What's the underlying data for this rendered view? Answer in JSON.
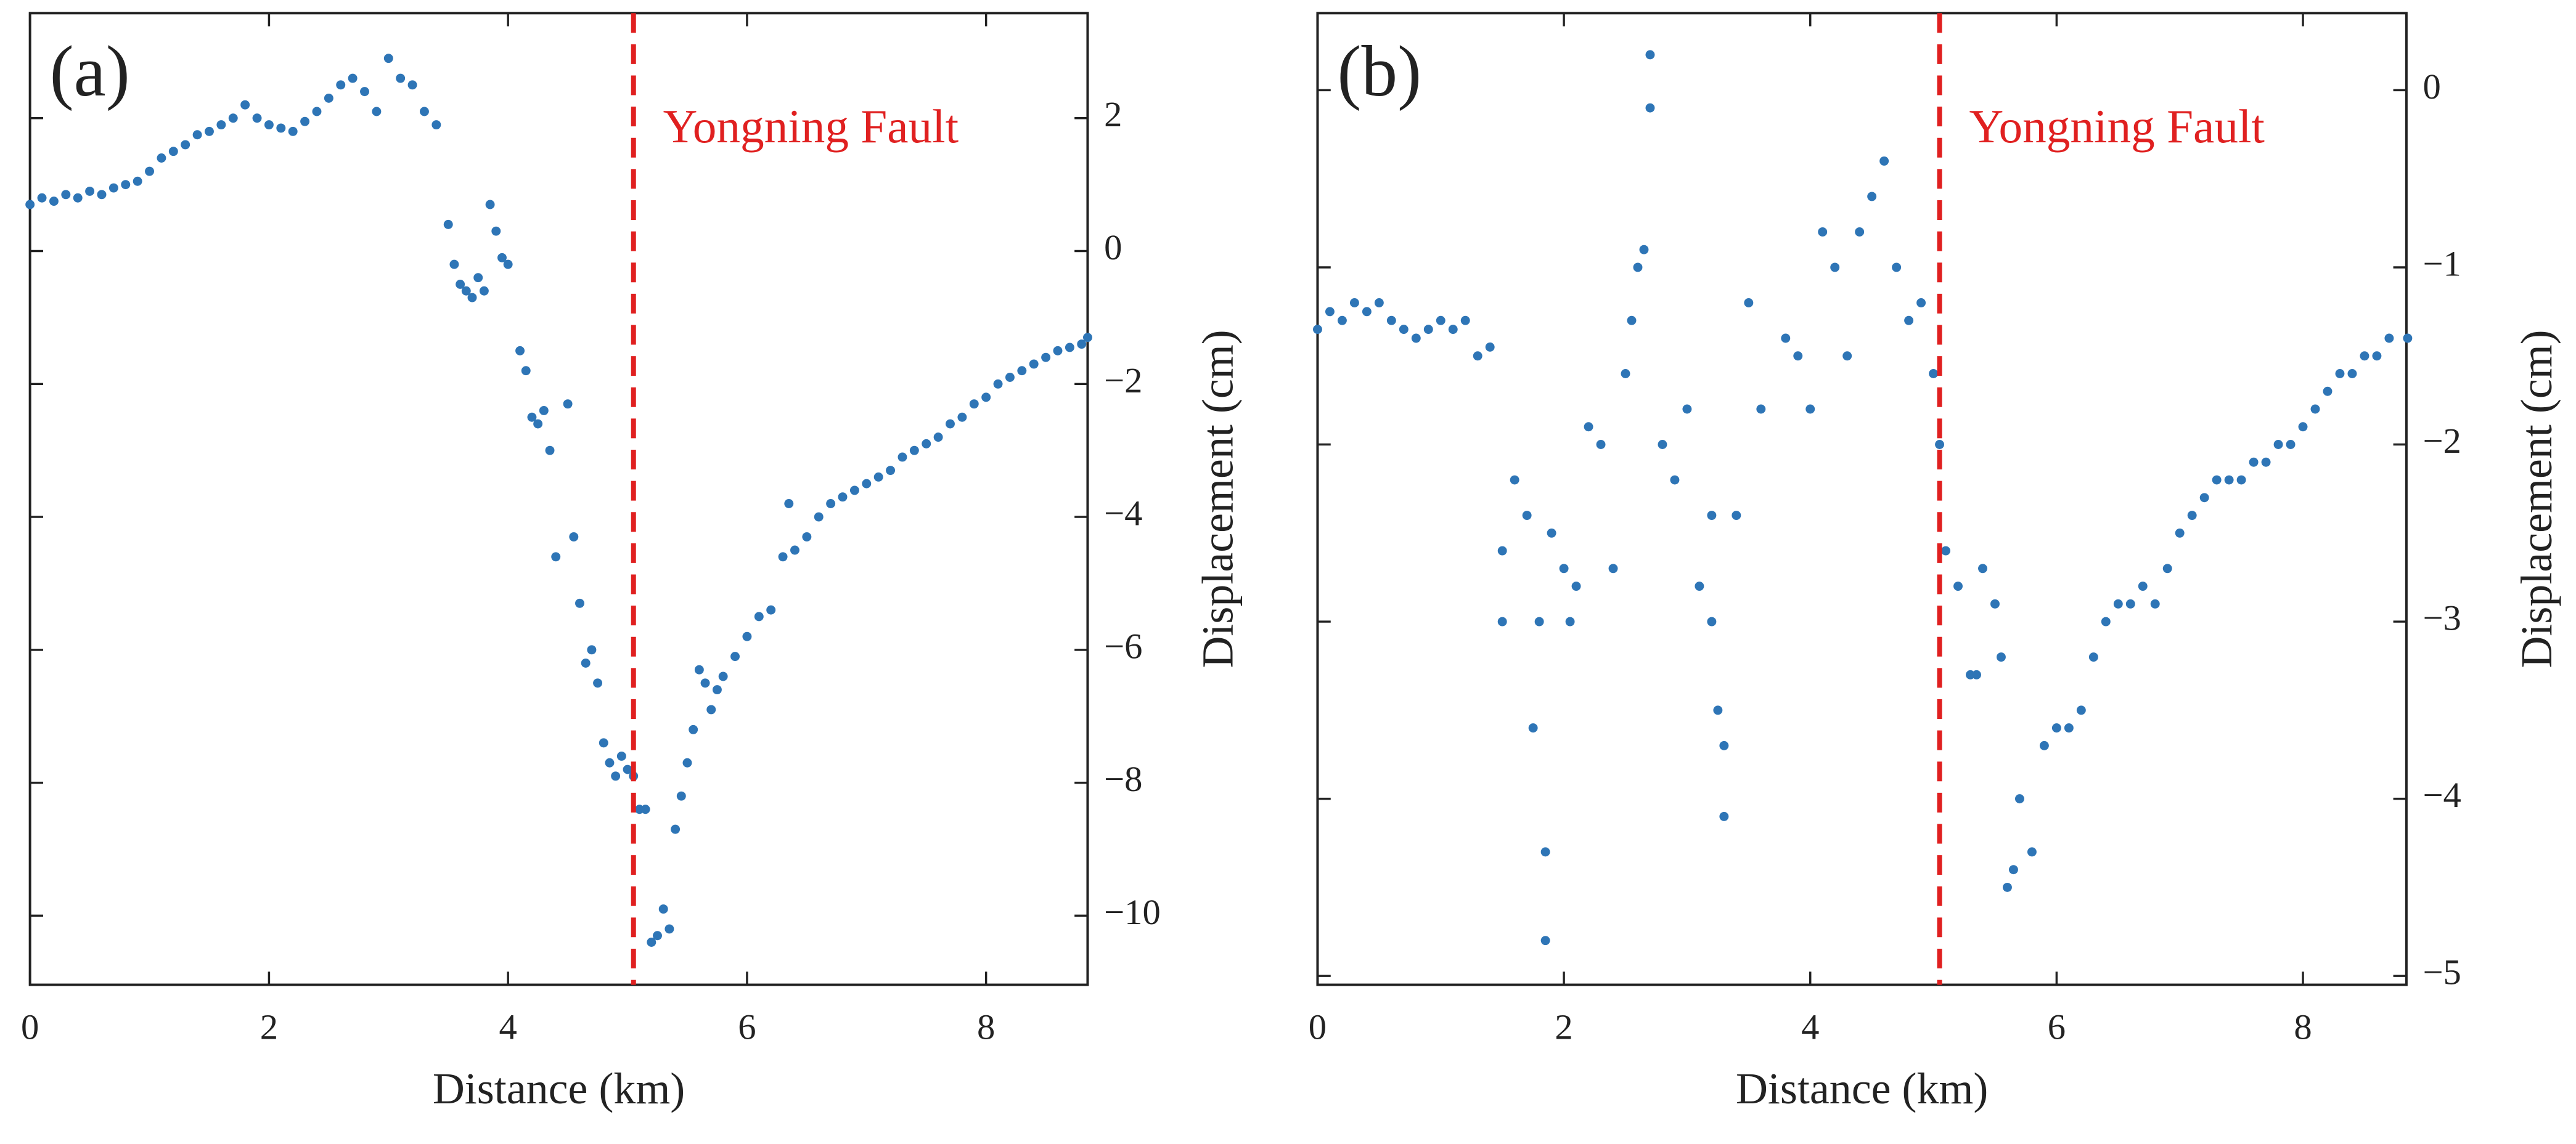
{
  "chart_data": [
    {
      "type": "scatter",
      "label": "(a)",
      "xlabel": "Distance (km)",
      "ylabel": "Displacement (cm)",
      "yaxis_position": "right",
      "color": "#2e75b6",
      "xlim": [
        0,
        8.85
      ],
      "ylim": [
        -11.04,
        3.58
      ],
      "xticks": [
        0,
        2,
        4,
        6,
        8
      ],
      "yticks": [
        {
          "value": -10,
          "label": "−10"
        },
        {
          "value": -8,
          "label": "−8"
        },
        {
          "value": -6,
          "label": "−6"
        },
        {
          "value": -4,
          "label": "−4"
        },
        {
          "value": -2,
          "label": "−2"
        },
        0,
        2
      ],
      "annotation": {
        "text": "Yongning Fault",
        "x": 5.05,
        "color": "#e02020"
      },
      "x": [
        0,
        0.1,
        0.2,
        0.3,
        0.4,
        0.5,
        0.6,
        0.7,
        0.8,
        0.9,
        1.0,
        1.1,
        1.2,
        1.3,
        1.4,
        1.5,
        1.6,
        1.7,
        1.8,
        1.9,
        2.0,
        2.1,
        2.2,
        2.3,
        2.4,
        2.5,
        2.6,
        2.7,
        2.8,
        2.9,
        3.0,
        3.1,
        3.2,
        3.3,
        3.4,
        3.5,
        3.55,
        3.6,
        3.65,
        3.7,
        3.75,
        3.8,
        3.85,
        3.9,
        3.95,
        4.0,
        4.1,
        4.15,
        4.2,
        4.25,
        4.3,
        4.35,
        4.4,
        4.5,
        4.55,
        4.6,
        4.65,
        4.7,
        4.75,
        4.8,
        4.85,
        4.9,
        4.95,
        5.0,
        5.05,
        5.1,
        5.15,
        5.2,
        5.25,
        5.3,
        5.35,
        5.4,
        5.45,
        5.5,
        5.55,
        5.6,
        5.65,
        5.7,
        5.75,
        5.8,
        5.9,
        6.0,
        6.1,
        6.2,
        6.3,
        6.35,
        6.4,
        6.5,
        6.6,
        6.7,
        6.8,
        6.9,
        7.0,
        7.1,
        7.2,
        7.3,
        7.4,
        7.5,
        7.6,
        7.7,
        7.8,
        7.9,
        8.0,
        8.1,
        8.2,
        8.3,
        8.4,
        8.5,
        8.6,
        8.7,
        8.8,
        8.85
      ],
      "values": [
        0.7,
        0.8,
        0.75,
        0.85,
        0.8,
        0.9,
        0.85,
        0.95,
        1.0,
        1.05,
        1.2,
        1.4,
        1.5,
        1.6,
        1.75,
        1.8,
        1.9,
        2.0,
        2.2,
        2.0,
        1.9,
        1.85,
        1.8,
        1.95,
        2.1,
        2.3,
        2.5,
        2.6,
        2.4,
        2.1,
        2.9,
        2.6,
        2.5,
        2.1,
        1.9,
        0.4,
        -0.2,
        -0.5,
        -0.6,
        -0.7,
        -0.4,
        -0.6,
        0.7,
        0.3,
        -0.1,
        -0.2,
        -1.5,
        -1.8,
        -2.5,
        -2.6,
        -2.4,
        -3.0,
        -4.6,
        -2.3,
        -4.3,
        -5.3,
        -6.2,
        -6.0,
        -6.5,
        -7.4,
        -7.7,
        -7.9,
        -7.6,
        -7.8,
        -7.9,
        -8.4,
        -8.4,
        -10.4,
        -10.3,
        -9.9,
        -10.2,
        -8.7,
        -8.2,
        -7.7,
        -7.2,
        -6.3,
        -6.5,
        -6.9,
        -6.6,
        -6.4,
        -6.1,
        -5.8,
        -5.5,
        -5.4,
        -4.6,
        -3.8,
        -4.5,
        -4.3,
        -4.0,
        -3.8,
        -3.7,
        -3.6,
        -3.5,
        -3.4,
        -3.3,
        -3.1,
        -3.0,
        -2.9,
        -2.8,
        -2.6,
        -2.5,
        -2.3,
        -2.2,
        -2.0,
        -1.9,
        -1.8,
        -1.7,
        -1.6,
        -1.5,
        -1.45,
        -1.4,
        -1.3
      ]
    },
    {
      "type": "scatter",
      "label": "(b)",
      "xlabel": "Distance (km)",
      "ylabel": "Displacement (cm)",
      "yaxis_position": "right",
      "color": "#2e75b6",
      "xlim": [
        0,
        8.84
      ],
      "ylim": [
        -5.05,
        0.435
      ],
      "xticks": [
        0,
        2,
        4,
        6,
        8
      ],
      "yticks": [
        {
          "value": -5,
          "label": "−5"
        },
        {
          "value": -4,
          "label": "−4"
        },
        {
          "value": -3,
          "label": "−3"
        },
        {
          "value": -2,
          "label": "−2"
        },
        {
          "value": -1,
          "label": "−1"
        },
        0
      ],
      "annotation": {
        "text": "Yongning Fault",
        "x": 5.05,
        "color": "#e02020"
      },
      "x": [
        0,
        0.1,
        0.2,
        0.3,
        0.4,
        0.5,
        0.6,
        0.7,
        0.8,
        0.9,
        1.0,
        1.1,
        1.2,
        1.3,
        1.4,
        1.5,
        1.5,
        1.6,
        1.7,
        1.75,
        1.8,
        1.85,
        1.85,
        1.9,
        2.0,
        2.05,
        2.1,
        2.2,
        2.3,
        2.4,
        2.5,
        2.55,
        2.6,
        2.65,
        2.7,
        2.7,
        2.8,
        2.9,
        3.0,
        3.1,
        3.2,
        3.2,
        3.25,
        3.3,
        3.3,
        3.4,
        3.5,
        3.6,
        3.8,
        3.9,
        4.0,
        4.1,
        4.2,
        4.3,
        4.4,
        4.5,
        4.6,
        4.7,
        4.8,
        4.9,
        5.0,
        5.05,
        5.1,
        5.2,
        5.3,
        5.35,
        5.4,
        5.5,
        5.55,
        5.6,
        5.65,
        5.7,
        5.8,
        5.9,
        6.0,
        6.1,
        6.2,
        6.3,
        6.4,
        6.5,
        6.6,
        6.7,
        6.8,
        6.9,
        7.0,
        7.1,
        7.2,
        7.3,
        7.4,
        7.5,
        7.6,
        7.7,
        7.8,
        7.9,
        8.0,
        8.1,
        8.2,
        8.3,
        8.4,
        8.5,
        8.6,
        8.7,
        8.85
      ],
      "values": [
        -1.35,
        -1.25,
        -1.3,
        -1.2,
        -1.25,
        -1.2,
        -1.3,
        -1.35,
        -1.4,
        -1.35,
        -1.3,
        -1.35,
        -1.3,
        -1.5,
        -1.45,
        -2.6,
        -3.0,
        -2.2,
        -2.4,
        -3.6,
        -3.0,
        -4.3,
        -4.8,
        -2.5,
        -2.7,
        -3.0,
        -2.8,
        -1.9,
        -2.0,
        -2.7,
        -1.6,
        -1.3,
        -1.0,
        -0.9,
        0.2,
        -0.1,
        -2.0,
        -2.2,
        -1.8,
        -2.8,
        -3.0,
        -2.4,
        -3.5,
        -3.7,
        -4.1,
        -2.4,
        -1.2,
        -1.8,
        -1.4,
        -1.5,
        -1.8,
        -0.8,
        -1.0,
        -1.5,
        -0.8,
        -0.6,
        -0.4,
        -1.0,
        -1.3,
        -1.2,
        -1.6,
        -2.0,
        -2.6,
        -2.8,
        -3.3,
        -3.3,
        -2.7,
        -2.9,
        -3.2,
        -4.5,
        -4.4,
        -4.0,
        -4.3,
        -3.7,
        -3.6,
        -3.6,
        -3.5,
        -3.2,
        -3.0,
        -2.9,
        -2.9,
        -2.8,
        -2.9,
        -2.7,
        -2.5,
        -2.4,
        -2.3,
        -2.2,
        -2.2,
        -2.2,
        -2.1,
        -2.1,
        -2.0,
        -2.0,
        -1.9,
        -1.8,
        -1.7,
        -1.6,
        -1.6,
        -1.5,
        -1.5,
        -1.4,
        -1.4
      ]
    }
  ]
}
